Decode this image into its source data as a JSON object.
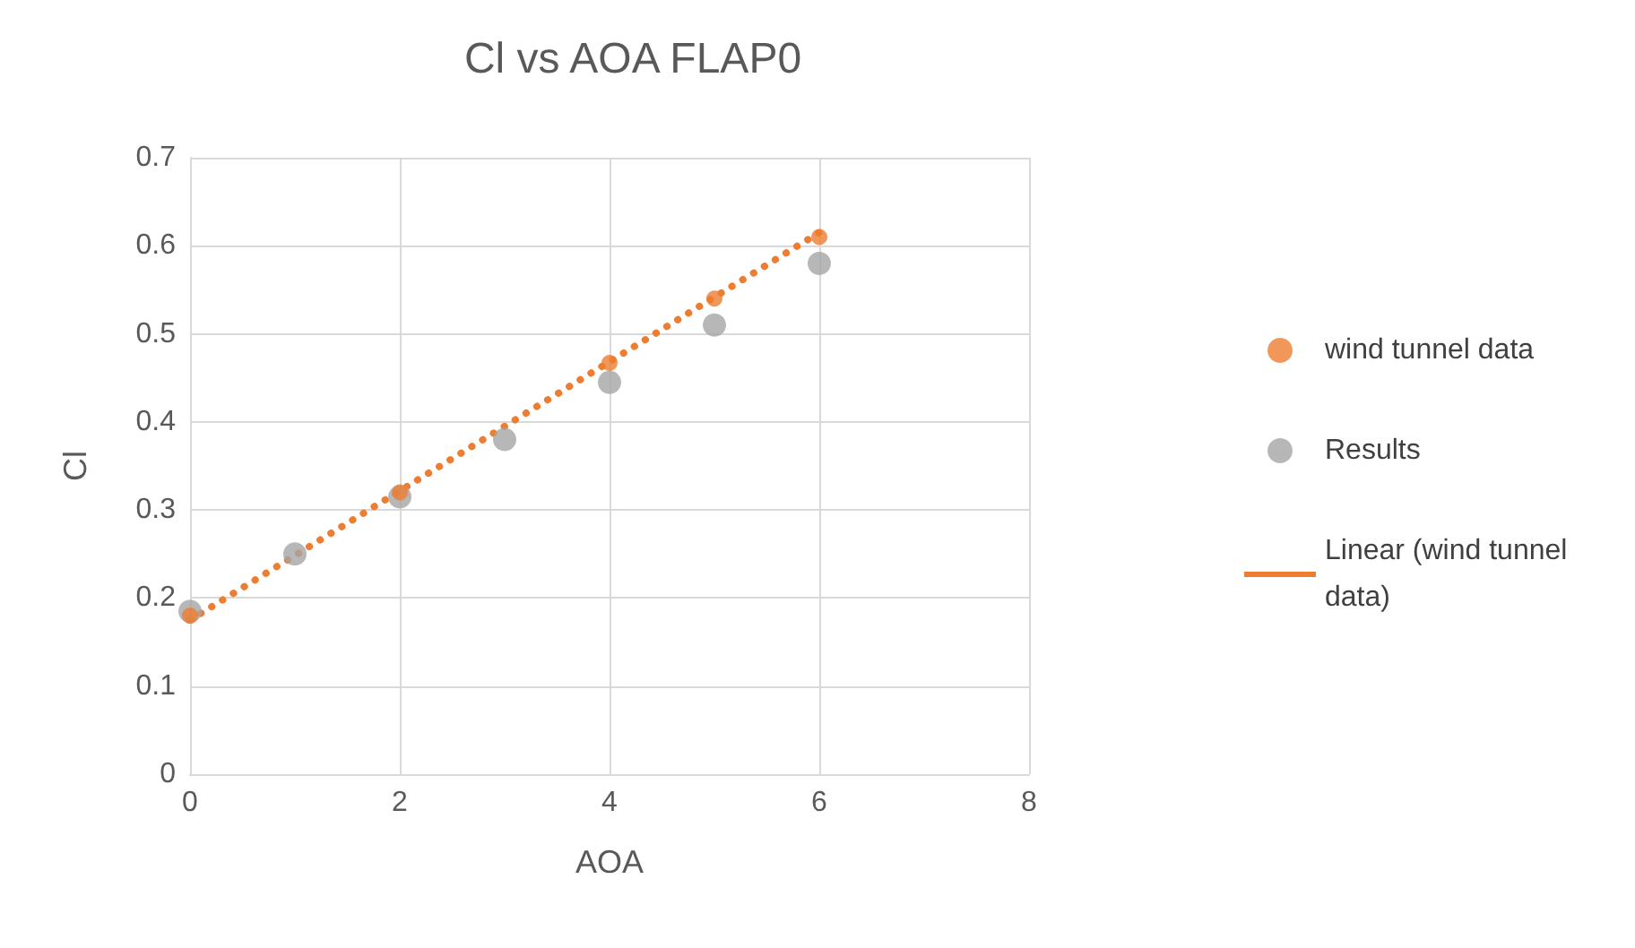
{
  "chart_data": {
    "type": "scatter",
    "title": "Cl vs AOA FLAP0",
    "xlabel": "AOA",
    "ylabel": "Cl",
    "series": [
      {
        "name": "wind tunnel data",
        "color": "#ed7d31",
        "x": [
          0,
          2,
          4,
          5,
          6
        ],
        "values": [
          0.18,
          0.32,
          0.467,
          0.54,
          0.61
        ]
      },
      {
        "name": "Results",
        "color": "#a5a5a5",
        "x": [
          0,
          1,
          2,
          3,
          4,
          5,
          6
        ],
        "values": [
          0.185,
          0.25,
          0.315,
          0.38,
          0.445,
          0.51,
          0.58
        ]
      },
      {
        "name": "Linear (wind tunnel data)",
        "type": "line",
        "line_style": "dotted",
        "marker": "none",
        "color": "#ed7d31",
        "x": [
          0,
          6
        ],
        "values": [
          0.175,
          0.615
        ]
      }
    ],
    "xlim": [
      0,
      8
    ],
    "xticks": [
      0,
      2,
      4,
      6,
      8
    ],
    "ylim": [
      0,
      0.7
    ],
    "yticks": [
      0,
      0.1,
      0.2,
      0.3,
      0.4,
      0.5,
      0.6,
      0.7
    ],
    "grid": true,
    "legend": "right",
    "marker": "circle"
  }
}
